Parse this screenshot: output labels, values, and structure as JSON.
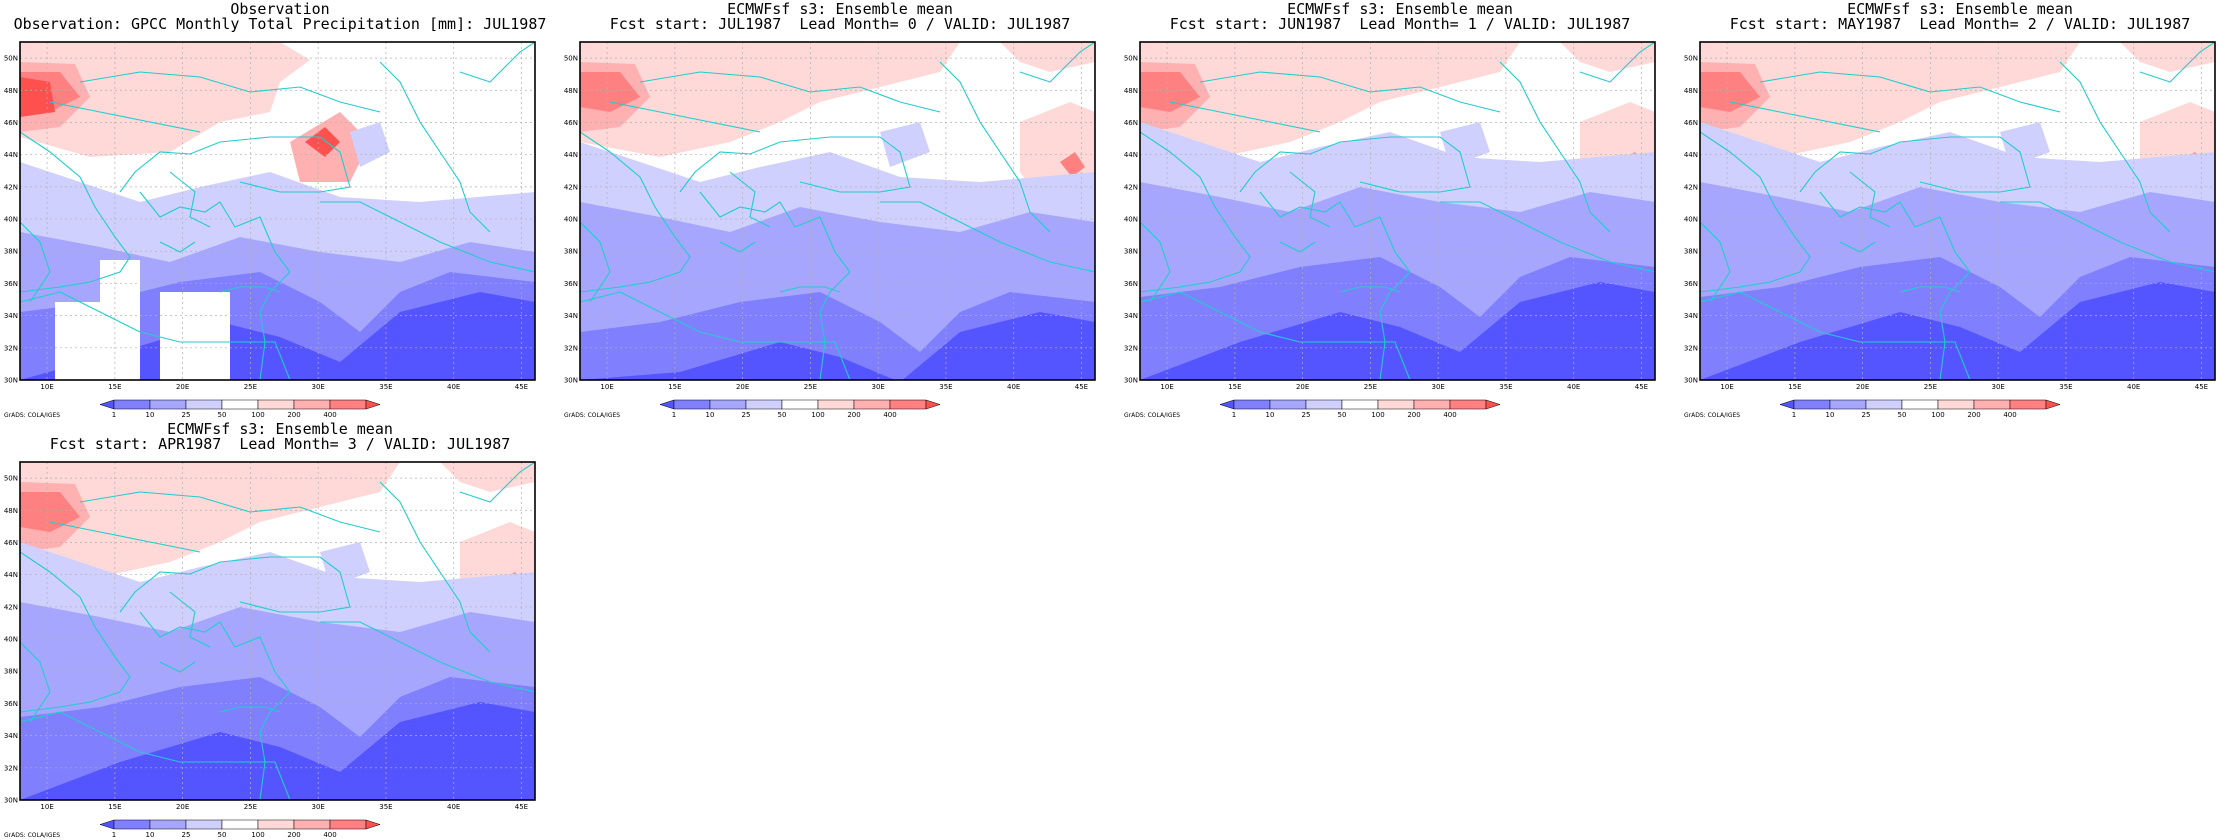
{
  "panels": [
    {
      "title_line1": "Observation",
      "title_line2": "Observation: GPCC Monthly Total Precipitation [mm]: JUL1987",
      "variant": "obs"
    },
    {
      "title_line1": "ECMWFsf s3: Ensemble mean",
      "title_line2": "Fcst start: JUL1987  Lead Month= 0 / VALID: JUL1987",
      "variant": "lead0"
    },
    {
      "title_line1": "ECMWFsf s3: Ensemble mean",
      "title_line2": "Fcst start: JUN1987  Lead Month= 1 / VALID: JUL1987",
      "variant": "lead1"
    },
    {
      "title_line1": "ECMWFsf s3: Ensemble mean",
      "title_line2": "Fcst start: MAY1987  Lead Month= 2 / VALID: JUL1987",
      "variant": "lead2"
    },
    {
      "title_line1": "ECMWFsf s3: Ensemble mean",
      "title_line2": "Fcst start: APR1987  Lead Month= 3 / VALID: JUL1987",
      "variant": "lead3"
    }
  ],
  "map": {
    "lon_ticks": [
      "10E",
      "15E",
      "20E",
      "25E",
      "30E",
      "35E",
      "40E",
      "45E"
    ],
    "lat_ticks": [
      "30N",
      "32N",
      "34N",
      "36N",
      "38N",
      "40N",
      "42N",
      "44N",
      "46N",
      "48N",
      "50N"
    ],
    "lon_range": [
      8,
      46
    ],
    "lat_range": [
      30,
      51
    ]
  },
  "colorbar": {
    "labels": [
      "1",
      "10",
      "25",
      "50",
      "100",
      "200",
      "400"
    ],
    "colors": [
      "#5555ff",
      "#8080ff",
      "#a6a6ff",
      "#d0d0ff",
      "#ffffff",
      "#ffd8d8",
      "#ffb0b0",
      "#ff8080",
      "#ff5050"
    ]
  },
  "credit": "GrADS: COLA/IGES",
  "colors": {
    "coastline": "#22cccc",
    "frame": "#000000"
  }
}
